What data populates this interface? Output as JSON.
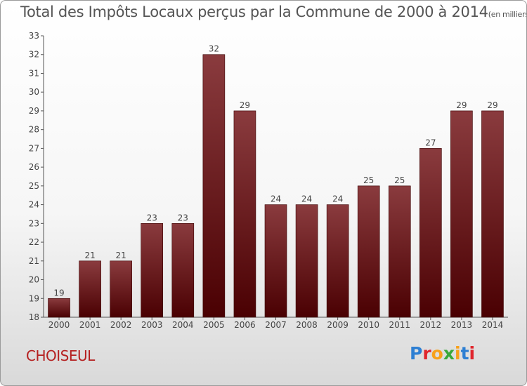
{
  "page": {
    "title": "Total des Impôts Locaux perçus par la Commune de 2000 à 2014",
    "unit": "(en milliers d'€)",
    "commune": "CHOISEUL",
    "logo_text": "Proxiti"
  },
  "colors": {
    "bar_top": "#8a3b3e",
    "bar_bottom": "#4a0002",
    "axis": "#555555",
    "commune": "#b52020",
    "logo": [
      "#2d7fd3",
      "#e0262d",
      "#f7a11a",
      "#3aa83a",
      "#f7a11a",
      "#2d7fd3",
      "#e0262d"
    ]
  },
  "chart_data": {
    "type": "bar",
    "title": "Total des Impôts Locaux perçus par la Commune de 2000 à 2014",
    "xlabel": "",
    "ylabel": "",
    "categories": [
      "2000",
      "2001",
      "2002",
      "2003",
      "2004",
      "2005",
      "2006",
      "2007",
      "2008",
      "2009",
      "2010",
      "2011",
      "2012",
      "2013",
      "2014"
    ],
    "values": [
      19,
      21,
      21,
      23,
      23,
      32,
      29,
      24,
      24,
      24,
      25,
      25,
      27,
      29,
      29
    ],
    "ylim": [
      18,
      33
    ],
    "yticks": [
      18,
      19,
      20,
      21,
      22,
      23,
      24,
      25,
      26,
      27,
      28,
      29,
      30,
      31,
      32,
      33
    ],
    "grid": false,
    "data_labels": true
  }
}
